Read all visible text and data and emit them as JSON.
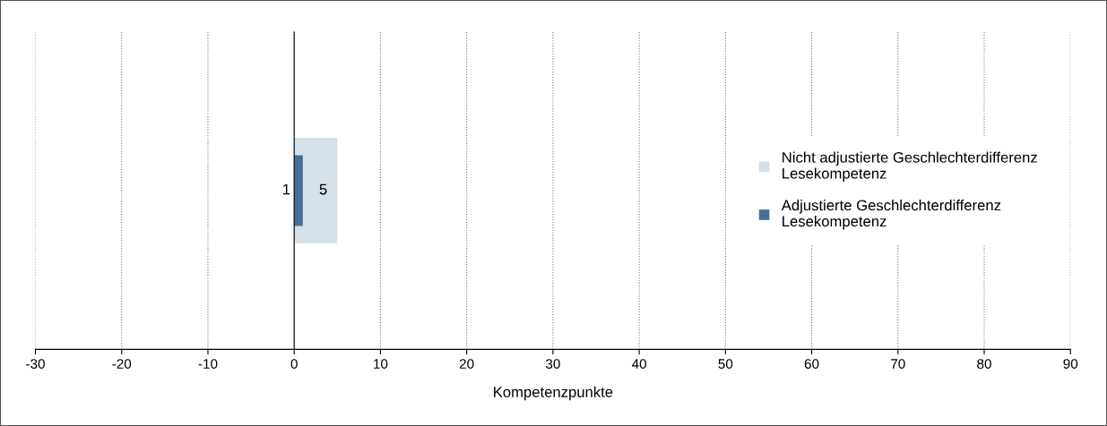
{
  "chart_data": {
    "type": "bar",
    "orientation": "horizontal",
    "categories": [
      null
    ],
    "series": [
      {
        "name": "Nicht adjustierte Geschlechterdifferenz\nLesekompetenz",
        "color": "#d6e0e9",
        "values": [
          5
        ]
      },
      {
        "name": "Adjustierte Geschlechterdifferenz\nLesekompetenz",
        "color": "#4a6f94",
        "values": [
          1
        ]
      }
    ],
    "xlabel": "Kompetenzpunkte",
    "xlim": [
      -30,
      90
    ],
    "xticks": [
      -30,
      -20,
      -10,
      0,
      10,
      20,
      30,
      40,
      50,
      60,
      70,
      80,
      90
    ],
    "grid": "x",
    "legend": "right",
    "data_labels": true
  }
}
